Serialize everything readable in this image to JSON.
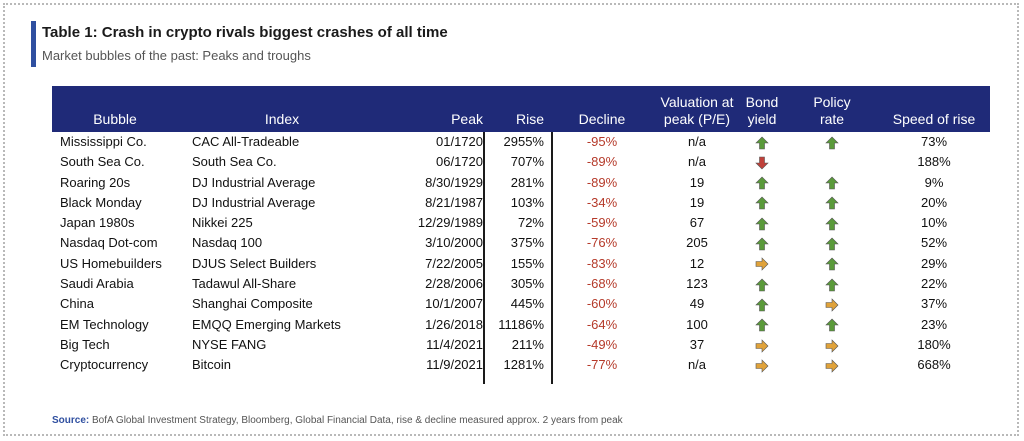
{
  "title": "Table 1: Crash in crypto rivals biggest crashes of all time",
  "subtitle": "Market bubbles of the past: Peaks and troughs",
  "headers": {
    "bubble": "Bubble",
    "index": "Index",
    "peak": "Peak",
    "rise": "Rise",
    "decline": "Decline",
    "valuation_1": "Valuation at",
    "valuation_2": "peak (P/E)",
    "bond_1": "Bond",
    "bond_2": "yield",
    "policy_1": "Policy",
    "policy_2": "rate",
    "speed": "Speed of rise"
  },
  "rows": [
    {
      "bubble": "Mississippi Co.",
      "index": "CAC All-Tradeable",
      "peak": "01/1720",
      "rise": "2955%",
      "decline": "-95%",
      "valuation": "n/a",
      "bond": "up",
      "policy": "up",
      "speed": "73%"
    },
    {
      "bubble": "South Sea Co.",
      "index": "South Sea Co.",
      "peak": "06/1720",
      "rise": "707%",
      "decline": "-89%",
      "valuation": "n/a",
      "bond": "down",
      "policy": "",
      "speed": "188%"
    },
    {
      "bubble": "Roaring 20s",
      "index": "DJ Industrial Average",
      "peak": "8/30/1929",
      "rise": "281%",
      "decline": "-89%",
      "valuation": "19",
      "bond": "up",
      "policy": "up",
      "speed": "9%"
    },
    {
      "bubble": "Black Monday",
      "index": "DJ Industrial Average",
      "peak": "8/21/1987",
      "rise": "103%",
      "decline": "-34%",
      "valuation": "19",
      "bond": "up",
      "policy": "up",
      "speed": "20%"
    },
    {
      "bubble": "Japan 1980s",
      "index": "Nikkei 225",
      "peak": "12/29/1989",
      "rise": "72%",
      "decline": "-59%",
      "valuation": "67",
      "bond": "up",
      "policy": "up",
      "speed": "10%"
    },
    {
      "bubble": "Nasdaq Dot-com",
      "index": "Nasdaq 100",
      "peak": "3/10/2000",
      "rise": "375%",
      "decline": "-76%",
      "valuation": "205",
      "bond": "up",
      "policy": "up",
      "speed": "52%"
    },
    {
      "bubble": "US Homebuilders",
      "index": "DJUS Select Builders",
      "peak": "7/22/2005",
      "rise": "155%",
      "decline": "-83%",
      "valuation": "12",
      "bond": "right",
      "policy": "up",
      "speed": "29%"
    },
    {
      "bubble": "Saudi Arabia",
      "index": "Tadawul All-Share",
      "peak": "2/28/2006",
      "rise": "305%",
      "decline": "-68%",
      "valuation": "123",
      "bond": "up",
      "policy": "up",
      "speed": "22%"
    },
    {
      "bubble": "China",
      "index": "Shanghai Composite",
      "peak": "10/1/2007",
      "rise": "445%",
      "decline": "-60%",
      "valuation": "49",
      "bond": "up",
      "policy": "right",
      "speed": "37%"
    },
    {
      "bubble": "EM Technology",
      "index": "EMQQ Emerging Markets",
      "peak": "1/26/2018",
      "rise": "11186%",
      "decline": "-64%",
      "valuation": "100",
      "bond": "up",
      "policy": "up",
      "speed": "23%"
    },
    {
      "bubble": "Big Tech",
      "index": "NYSE FANG",
      "peak": "11/4/2021",
      "rise": "211%",
      "decline": "-49%",
      "valuation": "37",
      "bond": "right",
      "policy": "right",
      "speed": "180%"
    },
    {
      "bubble": "Cryptocurrency",
      "index": "Bitcoin",
      "peak": "11/9/2021",
      "rise": "1281%",
      "decline": "-77%",
      "valuation": "n/a",
      "bond": "right",
      "policy": "right",
      "speed": "668%"
    }
  ],
  "source_label": "Source:",
  "source_text": " BofA Global Investment Strategy, Bloomberg, Global Financial Data, rise & decline measured approx. 2 years from peak",
  "colors": {
    "header_bg": "#1f2a78",
    "accent": "#2f4fa0",
    "decline_text": "#b53a2a",
    "arrow_up": "#5a9a3a",
    "arrow_down": "#c0413a",
    "arrow_right": "#e0a23a"
  }
}
